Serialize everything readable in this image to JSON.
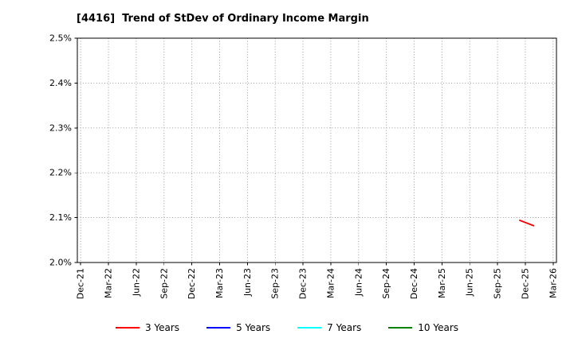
{
  "chart_data": {
    "type": "line",
    "title": "[4416]  Trend of StDev of Ordinary Income Margin",
    "xlabel": "",
    "ylabel": "",
    "x_tick_labels": [
      "Dec-21",
      "Mar-22",
      "Jun-22",
      "Sep-22",
      "Dec-22",
      "Mar-23",
      "Jun-23",
      "Sep-23",
      "Dec-23",
      "Mar-24",
      "Jun-24",
      "Sep-24",
      "Dec-24",
      "Mar-25",
      "Jun-25",
      "Sep-25",
      "Dec-25",
      "Mar-26"
    ],
    "x_range_index": [
      -0.12,
      17.12
    ],
    "ylim": [
      2.0,
      2.5
    ],
    "y_ticks": [
      2.0,
      2.1,
      2.2,
      2.3,
      2.4,
      2.5
    ],
    "y_tick_suffix": "%",
    "grid": true,
    "legend_position": "bottom-center",
    "series": [
      {
        "name": "3 Years",
        "color": "#ff0000",
        "points": [
          {
            "x_index": 15.8,
            "value": 2.094
          },
          {
            "x_index": 16.3,
            "value": 2.082
          }
        ]
      },
      {
        "name": "5 Years",
        "color": "#0000ff",
        "points": []
      },
      {
        "name": "7 Years",
        "color": "#00ffff",
        "points": []
      },
      {
        "name": "10 Years",
        "color": "#008000",
        "points": []
      }
    ]
  }
}
